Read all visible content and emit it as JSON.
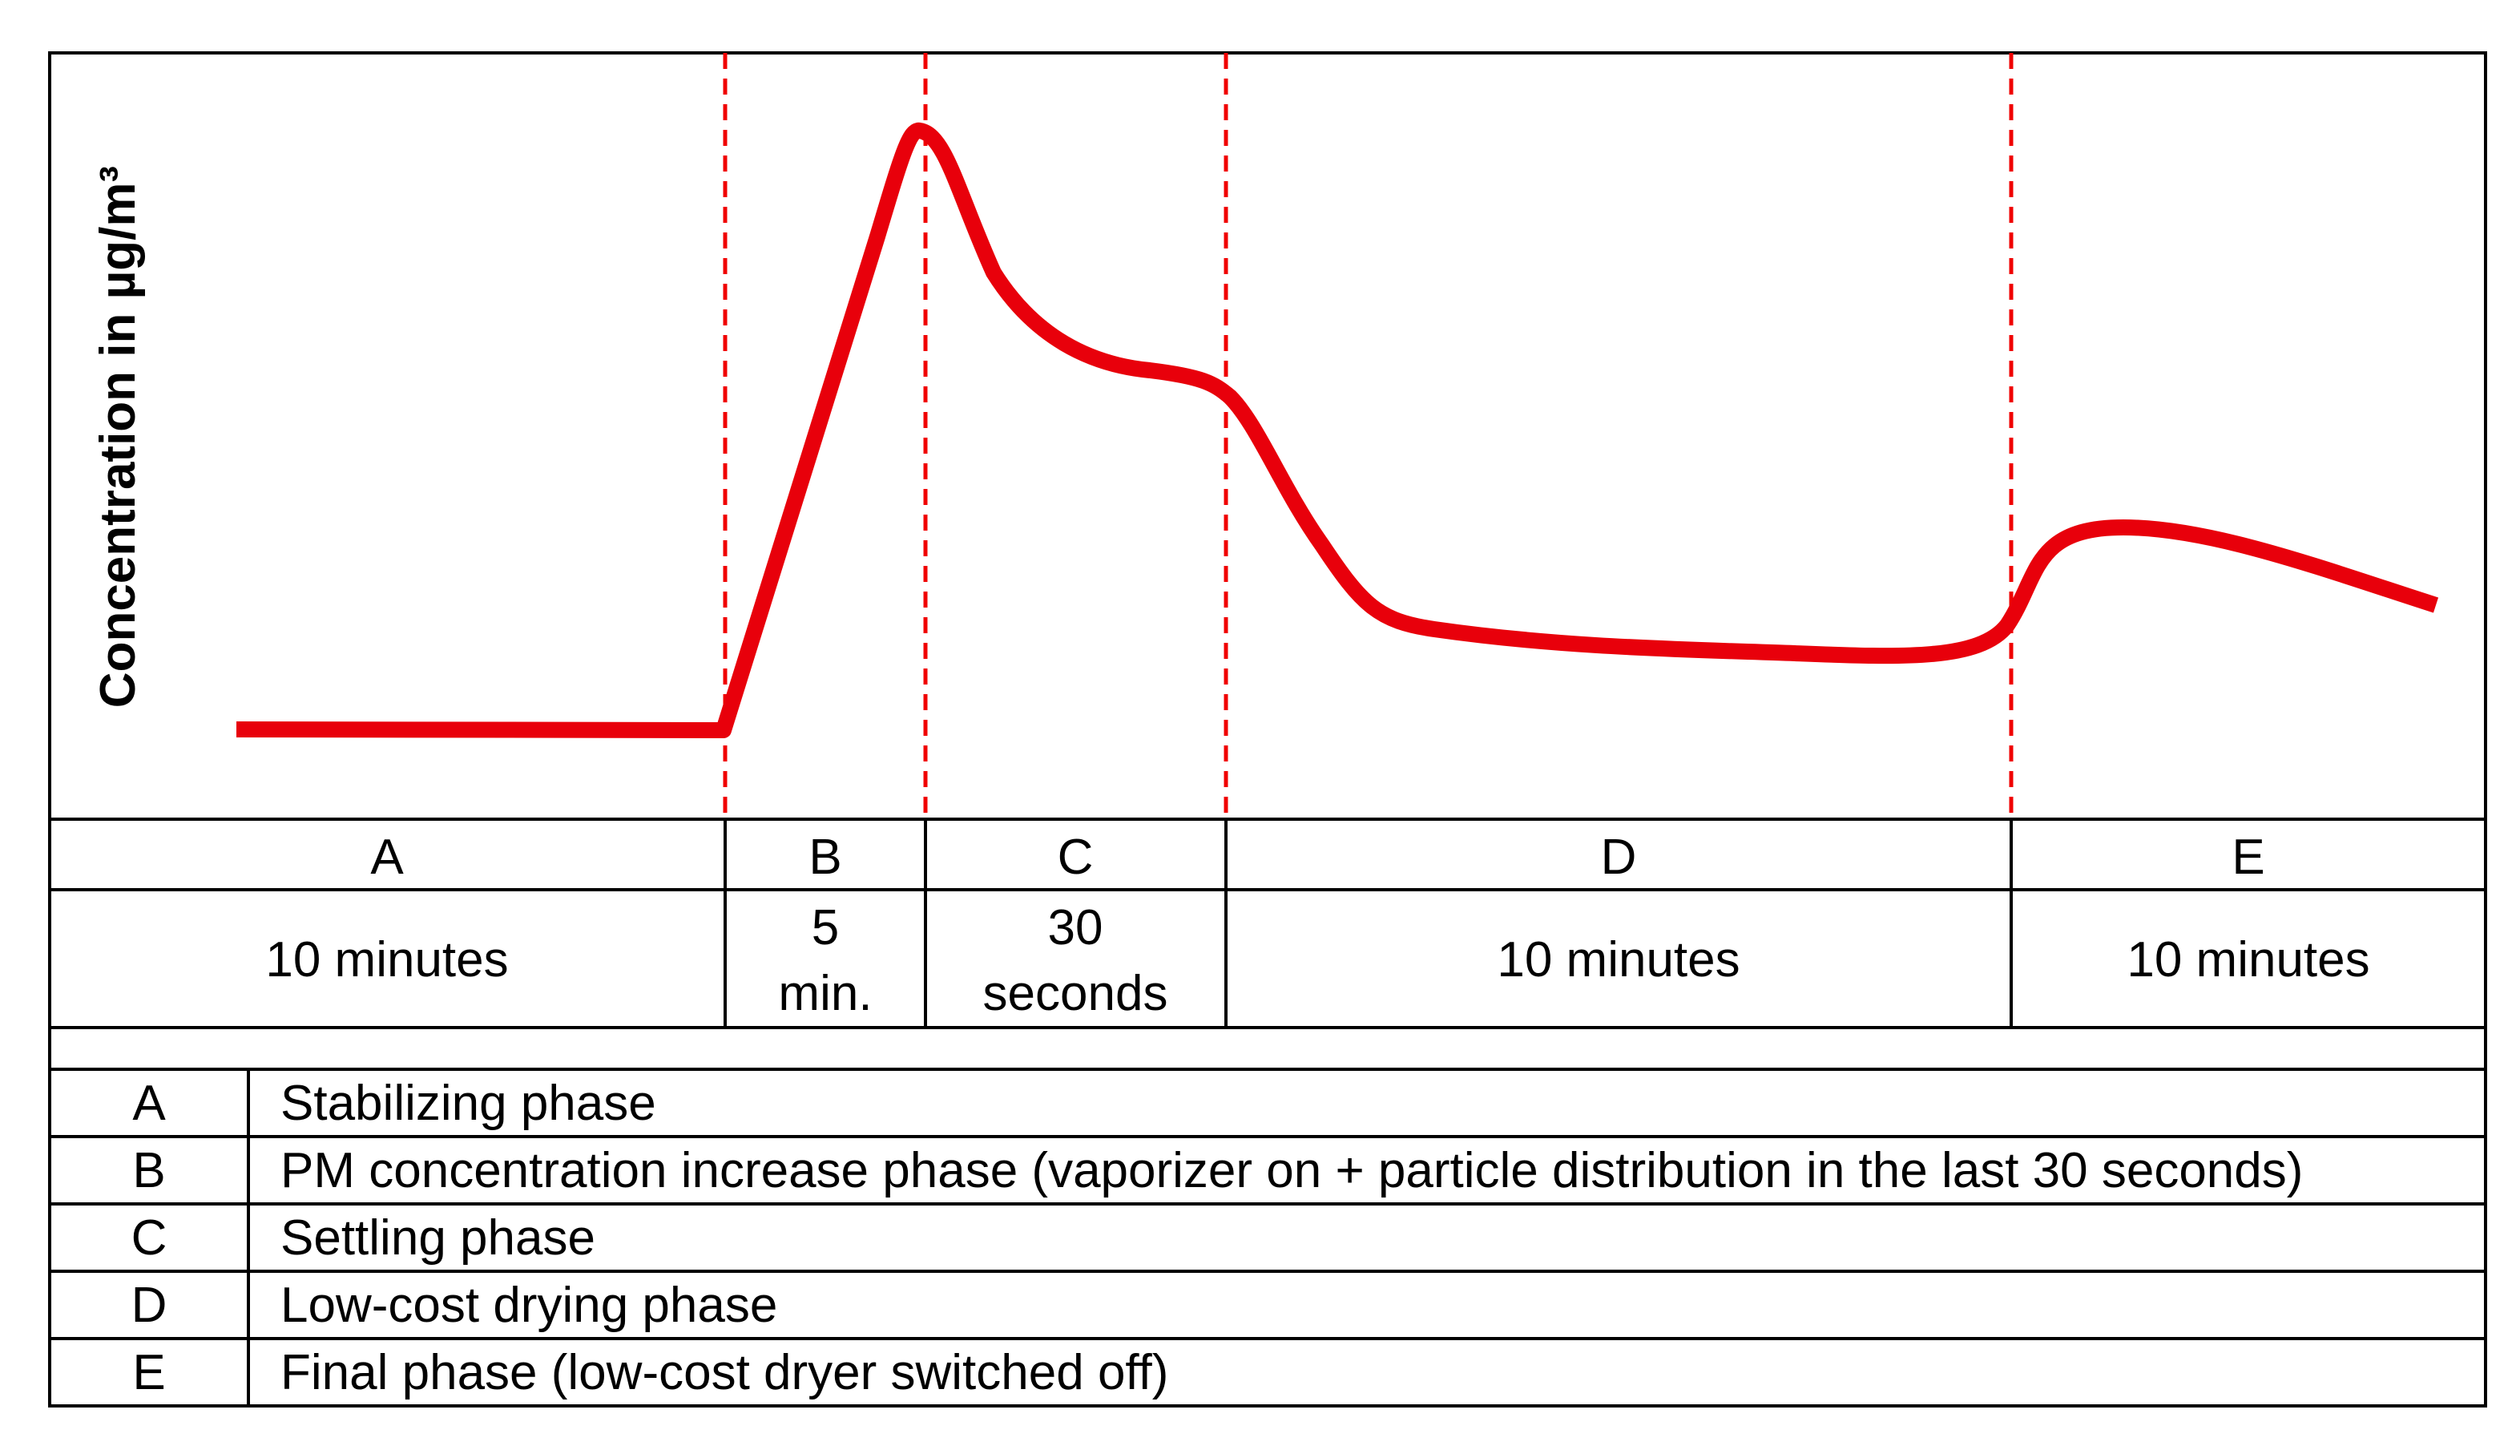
{
  "y_axis_label": "Concentration in µg/m³",
  "curve_color": "#e8000b",
  "divider_color": "#f00000",
  "curve_shape": "Flat low level in A, steep rise in B to a sharp peak, decline with shoulder in C, drop to a low plateau in D, small rise then gradual decline in E",
  "phases": [
    {
      "letter": "A",
      "duration": [
        "10 minutes"
      ]
    },
    {
      "letter": "B",
      "duration": [
        "5",
        "min."
      ]
    },
    {
      "letter": "C",
      "duration": [
        "30",
        "seconds"
      ]
    },
    {
      "letter": "D",
      "duration": [
        "10 minutes"
      ]
    },
    {
      "letter": "E",
      "duration": [
        "10 minutes"
      ]
    }
  ],
  "legend": [
    {
      "letter": "A",
      "description": "Stabilizing phase"
    },
    {
      "letter": "B",
      "description": "PM concentration increase phase (vaporizer on + particle distribution in the last 30 seconds)"
    },
    {
      "letter": "C",
      "description": "Settling phase"
    },
    {
      "letter": "D",
      "description": "Low-cost drying phase"
    },
    {
      "letter": "E",
      "description": "Final phase (low-cost dryer switched off)"
    }
  ]
}
